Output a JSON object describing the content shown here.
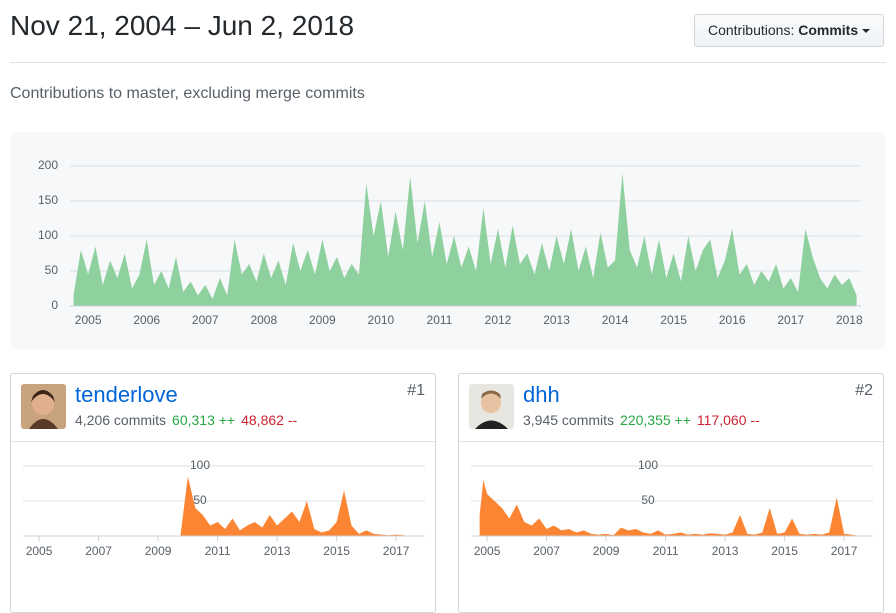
{
  "header": {
    "title": "Nov 21, 2004 – Jun 2, 2018",
    "button_label": "Contributions:",
    "button_value": "Commits"
  },
  "subtitle": "Contributions to master, excluding merge commits",
  "chart_data": [
    {
      "type": "area",
      "color": "#8fd09f",
      "grid": true,
      "x": [
        2004.75,
        2004.875,
        2005,
        2005.125,
        2005.25,
        2005.375,
        2005.5,
        2005.625,
        2005.75,
        2005.875,
        2006,
        2006.125,
        2006.25,
        2006.375,
        2006.5,
        2006.625,
        2006.75,
        2006.875,
        2007,
        2007.125,
        2007.25,
        2007.375,
        2007.5,
        2007.625,
        2007.75,
        2007.875,
        2008,
        2008.125,
        2008.25,
        2008.375,
        2008.5,
        2008.625,
        2008.75,
        2008.875,
        2009,
        2009.125,
        2009.25,
        2009.375,
        2009.5,
        2009.625,
        2009.75,
        2009.875,
        2010,
        2010.125,
        2010.25,
        2010.375,
        2010.5,
        2010.625,
        2010.75,
        2010.875,
        2011,
        2011.125,
        2011.25,
        2011.375,
        2011.5,
        2011.625,
        2011.75,
        2011.875,
        2012,
        2012.125,
        2012.25,
        2012.375,
        2012.5,
        2012.625,
        2012.75,
        2012.875,
        2013,
        2013.125,
        2013.25,
        2013.375,
        2013.5,
        2013.625,
        2013.75,
        2013.875,
        2014,
        2014.125,
        2014.25,
        2014.375,
        2014.5,
        2014.625,
        2014.75,
        2014.875,
        2015,
        2015.125,
        2015.25,
        2015.375,
        2015.5,
        2015.625,
        2015.75,
        2015.875,
        2016,
        2016.125,
        2016.25,
        2016.375,
        2016.5,
        2016.625,
        2016.75,
        2016.875,
        2017,
        2017.125,
        2017.25,
        2017.375,
        2017.5,
        2017.625,
        2017.75,
        2017.875,
        2018,
        2018.125
      ],
      "values": [
        15,
        80,
        45,
        85,
        30,
        65,
        40,
        75,
        25,
        45,
        95,
        30,
        50,
        25,
        70,
        20,
        35,
        15,
        30,
        10,
        40,
        15,
        95,
        45,
        60,
        35,
        75,
        40,
        65,
        30,
        90,
        50,
        80,
        45,
        95,
        50,
        70,
        40,
        60,
        45,
        175,
        100,
        150,
        70,
        135,
        80,
        185,
        90,
        150,
        70,
        120,
        60,
        100,
        55,
        85,
        50,
        140,
        60,
        110,
        55,
        115,
        60,
        75,
        45,
        90,
        50,
        100,
        60,
        110,
        50,
        85,
        40,
        105,
        55,
        65,
        190,
        80,
        55,
        100,
        45,
        95,
        40,
        75,
        35,
        100,
        50,
        80,
        95,
        40,
        65,
        110,
        45,
        60,
        30,
        50,
        35,
        60,
        25,
        40,
        20,
        110,
        70,
        40,
        25,
        45,
        30,
        40,
        15
      ],
      "xlim": [
        2004.69,
        2018.2
      ],
      "ylim": [
        0,
        200
      ],
      "xticks": [
        2005,
        2006,
        2007,
        2008,
        2009,
        2010,
        2011,
        2012,
        2013,
        2014,
        2015,
        2016,
        2017,
        2018
      ],
      "yticks": [
        0,
        50,
        100,
        150,
        200
      ]
    },
    {
      "type": "area",
      "color": "#fb8532",
      "grid": true,
      "x": [
        2009.75,
        2010,
        2010.25,
        2010.5,
        2010.75,
        2011,
        2011.25,
        2011.5,
        2011.75,
        2012,
        2012.25,
        2012.5,
        2012.75,
        2013,
        2013.25,
        2013.5,
        2013.75,
        2014,
        2014.25,
        2014.5,
        2014.75,
        2015,
        2015.25,
        2015.5,
        2015.75,
        2016,
        2016.25,
        2016.5,
        2016.75,
        2017,
        2017.25,
        2017.5
      ],
      "values": [
        0,
        85,
        40,
        30,
        15,
        20,
        10,
        25,
        8,
        15,
        20,
        12,
        30,
        15,
        25,
        35,
        20,
        50,
        10,
        5,
        8,
        20,
        65,
        15,
        3,
        8,
        3,
        2,
        1,
        2,
        1,
        0
      ],
      "xlim": [
        2004.46,
        2017.97
      ],
      "ylim": [
        0,
        100
      ],
      "xticks": [
        2005,
        2007,
        2009,
        2011,
        2013,
        2015,
        2017
      ],
      "yticks": [
        50,
        100
      ]
    },
    {
      "type": "area",
      "color": "#fb8532",
      "grid": true,
      "x": [
        2004.75,
        2004.875,
        2005,
        2005.25,
        2005.5,
        2005.75,
        2006,
        2006.25,
        2006.5,
        2006.75,
        2007,
        2007.25,
        2007.5,
        2007.75,
        2008,
        2008.25,
        2008.5,
        2008.75,
        2009,
        2009.25,
        2009.5,
        2009.75,
        2010,
        2010.25,
        2010.5,
        2010.75,
        2011,
        2011.25,
        2011.5,
        2011.75,
        2012,
        2012.25,
        2012.5,
        2012.75,
        2013,
        2013.25,
        2013.5,
        2013.75,
        2014,
        2014.25,
        2014.5,
        2014.75,
        2015,
        2015.25,
        2015.5,
        2015.75,
        2016,
        2016.25,
        2016.5,
        2016.75,
        2017,
        2017.25,
        2017.5
      ],
      "values": [
        30,
        80,
        60,
        50,
        40,
        25,
        45,
        20,
        15,
        25,
        10,
        15,
        8,
        10,
        5,
        8,
        3,
        2,
        3,
        1,
        12,
        8,
        10,
        5,
        3,
        8,
        2,
        3,
        5,
        2,
        3,
        2,
        4,
        3,
        2,
        5,
        30,
        3,
        2,
        5,
        40,
        3,
        5,
        25,
        3,
        2,
        3,
        2,
        5,
        55,
        3,
        2,
        0
      ],
      "xlim": [
        2004.46,
        2017.97
      ],
      "ylim": [
        0,
        100
      ],
      "xticks": [
        2005,
        2007,
        2009,
        2011,
        2013,
        2015,
        2017
      ],
      "yticks": [
        50,
        100
      ]
    }
  ],
  "contributors": [
    {
      "name": "tenderlove",
      "rank": "#1",
      "commits": "4,206 commits",
      "additions": "60,313 ++",
      "deletions": "48,862 --"
    },
    {
      "name": "dhh",
      "rank": "#2",
      "commits": "3,945 commits",
      "additions": "220,355 ++",
      "deletions": "117,060 --"
    }
  ]
}
